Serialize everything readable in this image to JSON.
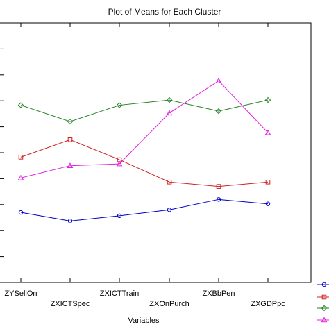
{
  "chart_data": {
    "type": "line",
    "title": "Plot of Means for Each Cluster",
    "xlabel": "Variables",
    "ylabel": "",
    "categories": [
      "ZYSellOn",
      "ZXICTSpec",
      "ZXICTTrain",
      "ZXOnPurch",
      "ZXBbPen",
      "ZXGDPpc"
    ],
    "ylim": [
      0,
      10
    ],
    "grid": false,
    "legend": "right",
    "series": [
      {
        "color": "#0000c8",
        "marker": "circle",
        "values": [
          2.7,
          2.37,
          2.57,
          2.8,
          3.2,
          3.03
        ]
      },
      {
        "color": "#d02020",
        "marker": "square",
        "values": [
          4.83,
          5.5,
          4.73,
          3.87,
          3.7,
          3.87
        ]
      },
      {
        "color": "#208020",
        "marker": "diamond",
        "values": [
          6.83,
          6.2,
          6.83,
          7.03,
          6.6,
          7.03
        ]
      },
      {
        "color": "#e020e0",
        "marker": "triangle",
        "values": [
          4.03,
          4.5,
          4.57,
          6.53,
          7.77,
          5.77
        ]
      }
    ]
  }
}
